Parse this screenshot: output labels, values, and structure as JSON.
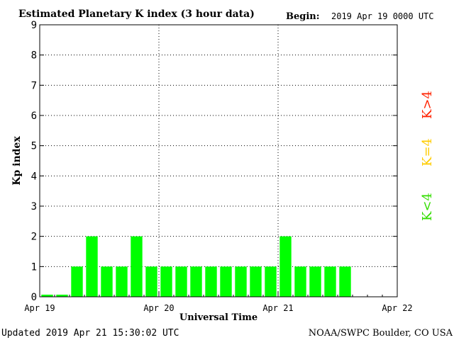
{
  "chart_data": {
    "type": "bar",
    "title": "Estimated Planetary K index (3 hour data)",
    "begin_label": "Begin:",
    "begin_value": "2019 Apr 19 0000 UTC",
    "xlabel": "Universal Time",
    "ylabel": "Kp index",
    "ylim": [
      0,
      9
    ],
    "y_ticks": [
      "0",
      "1",
      "2",
      "3",
      "4",
      "5",
      "6",
      "7",
      "8",
      "9"
    ],
    "x_ticks": [
      "Apr 19",
      "Apr 20",
      "Apr 21",
      "Apr 22"
    ],
    "x_hours_range": [
      0,
      72
    ],
    "interval_hours": 3,
    "values": [
      0.07,
      0.07,
      1,
      2,
      1,
      1,
      2,
      1,
      1,
      1,
      1,
      1,
      1,
      1,
      1,
      1,
      2,
      1,
      1,
      1,
      1
    ],
    "bar_color": "#00ff00",
    "grid": true,
    "legend": {
      "position": "right",
      "items": [
        {
          "label": "K<4",
          "color": "#33dd00"
        },
        {
          "label": "K=4",
          "color": "#ffcc00"
        },
        {
          "label": "K>4",
          "color": "#ff2200"
        }
      ]
    }
  },
  "footer": {
    "updated": "Updated 2019 Apr 21 15:30:02 UTC",
    "source": "NOAA/SWPC Boulder, CO USA"
  }
}
